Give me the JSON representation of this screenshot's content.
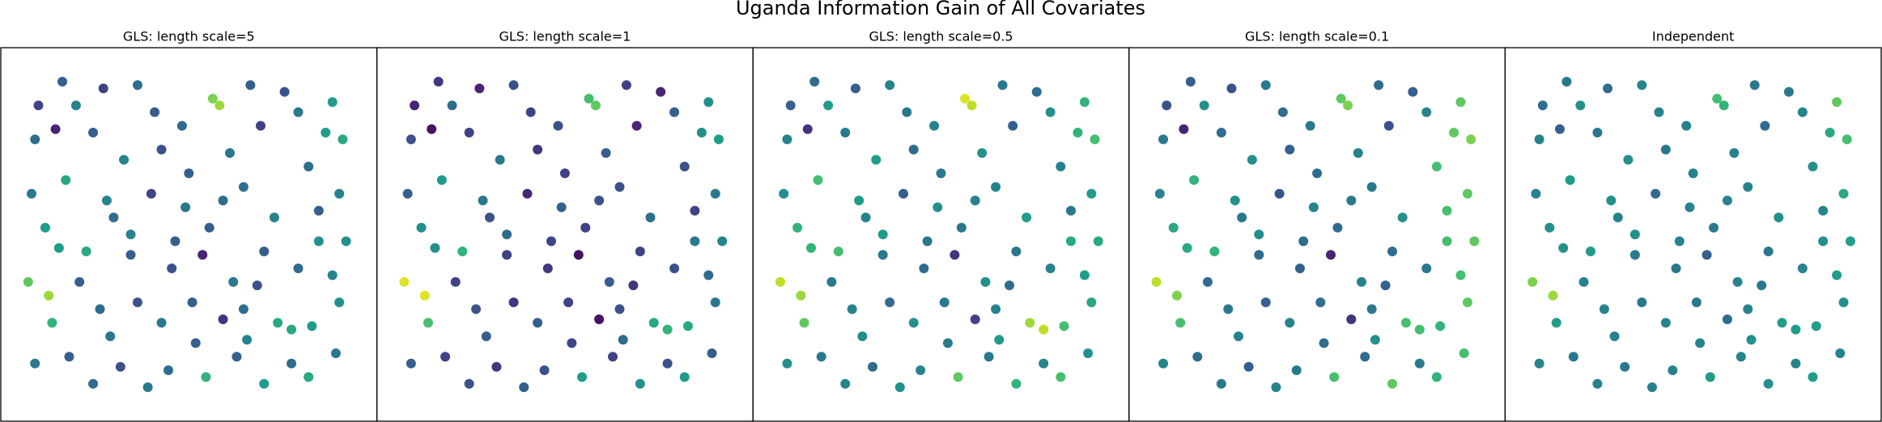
{
  "chart_data": {
    "type": "scatter",
    "title": "Uganda Information Gain of All Covariates",
    "colormap": "viridis",
    "clim": [
      0,
      1
    ],
    "xlim": [
      -0.05,
      1.05
    ],
    "ylim": [
      -0.05,
      1.05
    ],
    "x": [
      0.13,
      0.25,
      0.35,
      0.57,
      0.59,
      0.68,
      0.78,
      0.92,
      0.95,
      0.05,
      0.11,
      0.22,
      0.31,
      0.42,
      0.5,
      0.62,
      0.71,
      0.85,
      0.94,
      0.04,
      0.14,
      0.26,
      0.28,
      0.39,
      0.49,
      0.56,
      0.66,
      0.75,
      0.88,
      0.96,
      0.08,
      0.2,
      0.33,
      0.45,
      0.54,
      0.63,
      0.72,
      0.82,
      0.92,
      0.03,
      0.09,
      0.1,
      0.18,
      0.24,
      0.35,
      0.42,
      0.51,
      0.6,
      0.66,
      0.76,
      0.8,
      0.86,
      0.94,
      0.05,
      0.15,
      0.22,
      0.3,
      0.38,
      0.44,
      0.55,
      0.64,
      0.72,
      0.8,
      0.85,
      0.93,
      0.17,
      0.4,
      0.48,
      0.82,
      0.9,
      0.06,
      0.33,
      0.46,
      0.6,
      0.7,
      0.88,
      0.27,
      0.52,
      0.67,
      0.12
    ],
    "y": [
      0.95,
      0.93,
      0.94,
      0.9,
      0.88,
      0.94,
      0.92,
      0.89,
      0.78,
      0.78,
      0.81,
      0.8,
      0.72,
      0.75,
      0.68,
      0.74,
      0.82,
      0.7,
      0.62,
      0.62,
      0.66,
      0.6,
      0.55,
      0.62,
      0.58,
      0.52,
      0.64,
      0.55,
      0.57,
      0.48,
      0.52,
      0.45,
      0.44,
      0.4,
      0.44,
      0.36,
      0.45,
      0.4,
      0.38,
      0.36,
      0.32,
      0.24,
      0.36,
      0.28,
      0.3,
      0.24,
      0.3,
      0.25,
      0.28,
      0.24,
      0.22,
      0.23,
      0.3,
      0.12,
      0.14,
      0.06,
      0.11,
      0.05,
      0.1,
      0.08,
      0.14,
      0.06,
      0.12,
      0.08,
      0.15,
      0.88,
      0.86,
      0.82,
      0.86,
      0.8,
      0.88,
      0.5,
      0.48,
      0.6,
      0.35,
      0.48,
      0.2,
      0.18,
      0.19,
      0.46
    ],
    "series": [
      {
        "name": "GLS: length scale=5",
        "values": [
          0.3,
          0.2,
          0.35,
          0.8,
          0.85,
          0.3,
          0.25,
          0.55,
          0.6,
          0.35,
          0.1,
          0.3,
          0.45,
          0.25,
          0.3,
          0.4,
          0.2,
          0.35,
          0.45,
          0.4,
          0.6,
          0.45,
          0.35,
          0.2,
          0.4,
          0.3,
          0.35,
          0.45,
          0.3,
          0.5,
          0.55,
          0.6,
          0.3,
          0.25,
          0.1,
          0.4,
          0.3,
          0.35,
          0.45,
          0.75,
          0.85,
          0.65,
          0.3,
          0.35,
          0.25,
          0.4,
          0.3,
          0.15,
          0.35,
          0.6,
          0.6,
          0.55,
          0.5,
          0.4,
          0.3,
          0.35,
          0.25,
          0.4,
          0.35,
          0.65,
          0.3,
          0.55,
          0.35,
          0.6,
          0.4,
          0.45,
          0.3,
          0.35,
          0.4,
          0.55,
          0.2,
          0.45,
          0.3,
          0.35,
          0.25,
          0.5,
          0.4,
          0.3,
          0.45,
          0.55
        ]
      },
      {
        "name": "GLS: length scale=1",
        "values": [
          0.15,
          0.1,
          0.25,
          0.7,
          0.75,
          0.2,
          0.1,
          0.5,
          0.55,
          0.25,
          0.05,
          0.2,
          0.4,
          0.15,
          0.2,
          0.3,
          0.1,
          0.25,
          0.4,
          0.3,
          0.55,
          0.4,
          0.25,
          0.1,
          0.3,
          0.2,
          0.25,
          0.35,
          0.2,
          0.45,
          0.5,
          0.65,
          0.2,
          0.15,
          0.05,
          0.3,
          0.2,
          0.25,
          0.35,
          0.95,
          0.95,
          0.7,
          0.2,
          0.25,
          0.15,
          0.3,
          0.2,
          0.05,
          0.25,
          0.6,
          0.65,
          0.6,
          0.4,
          0.3,
          0.2,
          0.25,
          0.15,
          0.3,
          0.25,
          0.55,
          0.2,
          0.5,
          0.25,
          0.55,
          0.3,
          0.35,
          0.2,
          0.25,
          0.3,
          0.5,
          0.1,
          0.35,
          0.2,
          0.25,
          0.15,
          0.4,
          0.3,
          0.2,
          0.35,
          0.5
        ]
      },
      {
        "name": "GLS: length scale=0.5",
        "values": [
          0.35,
          0.3,
          0.45,
          0.95,
          0.9,
          0.4,
          0.35,
          0.65,
          0.7,
          0.45,
          0.15,
          0.4,
          0.55,
          0.35,
          0.4,
          0.5,
          0.3,
          0.45,
          0.55,
          0.5,
          0.7,
          0.55,
          0.45,
          0.3,
          0.5,
          0.4,
          0.45,
          0.55,
          0.4,
          0.6,
          0.65,
          0.7,
          0.4,
          0.35,
          0.15,
          0.5,
          0.4,
          0.45,
          0.55,
          0.9,
          0.85,
          0.75,
          0.4,
          0.45,
          0.35,
          0.5,
          0.4,
          0.2,
          0.45,
          0.85,
          0.9,
          0.7,
          0.6,
          0.5,
          0.4,
          0.45,
          0.35,
          0.5,
          0.45,
          0.75,
          0.4,
          0.65,
          0.45,
          0.7,
          0.5,
          0.55,
          0.4,
          0.45,
          0.5,
          0.65,
          0.3,
          0.55,
          0.4,
          0.45,
          0.35,
          0.6,
          0.5,
          0.4,
          0.55,
          0.65
        ]
      },
      {
        "name": "GLS: length scale=0.1",
        "values": [
          0.3,
          0.25,
          0.4,
          0.75,
          0.8,
          0.35,
          0.3,
          0.75,
          0.8,
          0.4,
          0.1,
          0.35,
          0.5,
          0.3,
          0.35,
          0.45,
          0.25,
          0.7,
          0.75,
          0.45,
          0.65,
          0.5,
          0.4,
          0.25,
          0.45,
          0.35,
          0.4,
          0.5,
          0.7,
          0.75,
          0.6,
          0.65,
          0.35,
          0.3,
          0.1,
          0.45,
          0.35,
          0.4,
          0.7,
          0.9,
          0.8,
          0.7,
          0.35,
          0.4,
          0.3,
          0.45,
          0.35,
          0.15,
          0.4,
          0.7,
          0.7,
          0.65,
          0.75,
          0.45,
          0.35,
          0.4,
          0.3,
          0.45,
          0.4,
          0.7,
          0.35,
          0.75,
          0.4,
          0.65,
          0.7,
          0.5,
          0.35,
          0.4,
          0.45,
          0.75,
          0.25,
          0.5,
          0.35,
          0.4,
          0.3,
          0.7,
          0.45,
          0.35,
          0.5,
          0.6
        ]
      },
      {
        "name": "Independent",
        "values": [
          0.4,
          0.35,
          0.45,
          0.7,
          0.65,
          0.4,
          0.4,
          0.75,
          0.7,
          0.45,
          0.3,
          0.4,
          0.5,
          0.4,
          0.45,
          0.45,
          0.35,
          0.5,
          0.6,
          0.45,
          0.55,
          0.5,
          0.45,
          0.35,
          0.45,
          0.4,
          0.45,
          0.5,
          0.45,
          0.55,
          0.5,
          0.55,
          0.4,
          0.4,
          0.3,
          0.45,
          0.4,
          0.45,
          0.55,
          0.8,
          0.85,
          0.55,
          0.45,
          0.45,
          0.4,
          0.45,
          0.4,
          0.35,
          0.45,
          0.55,
          0.55,
          0.55,
          0.5,
          0.45,
          0.4,
          0.45,
          0.4,
          0.45,
          0.45,
          0.55,
          0.45,
          0.5,
          0.45,
          0.55,
          0.45,
          0.5,
          0.45,
          0.45,
          0.45,
          0.6,
          0.35,
          0.5,
          0.45,
          0.45,
          0.4,
          0.5,
          0.45,
          0.45,
          0.5,
          0.5
        ]
      }
    ]
  }
}
